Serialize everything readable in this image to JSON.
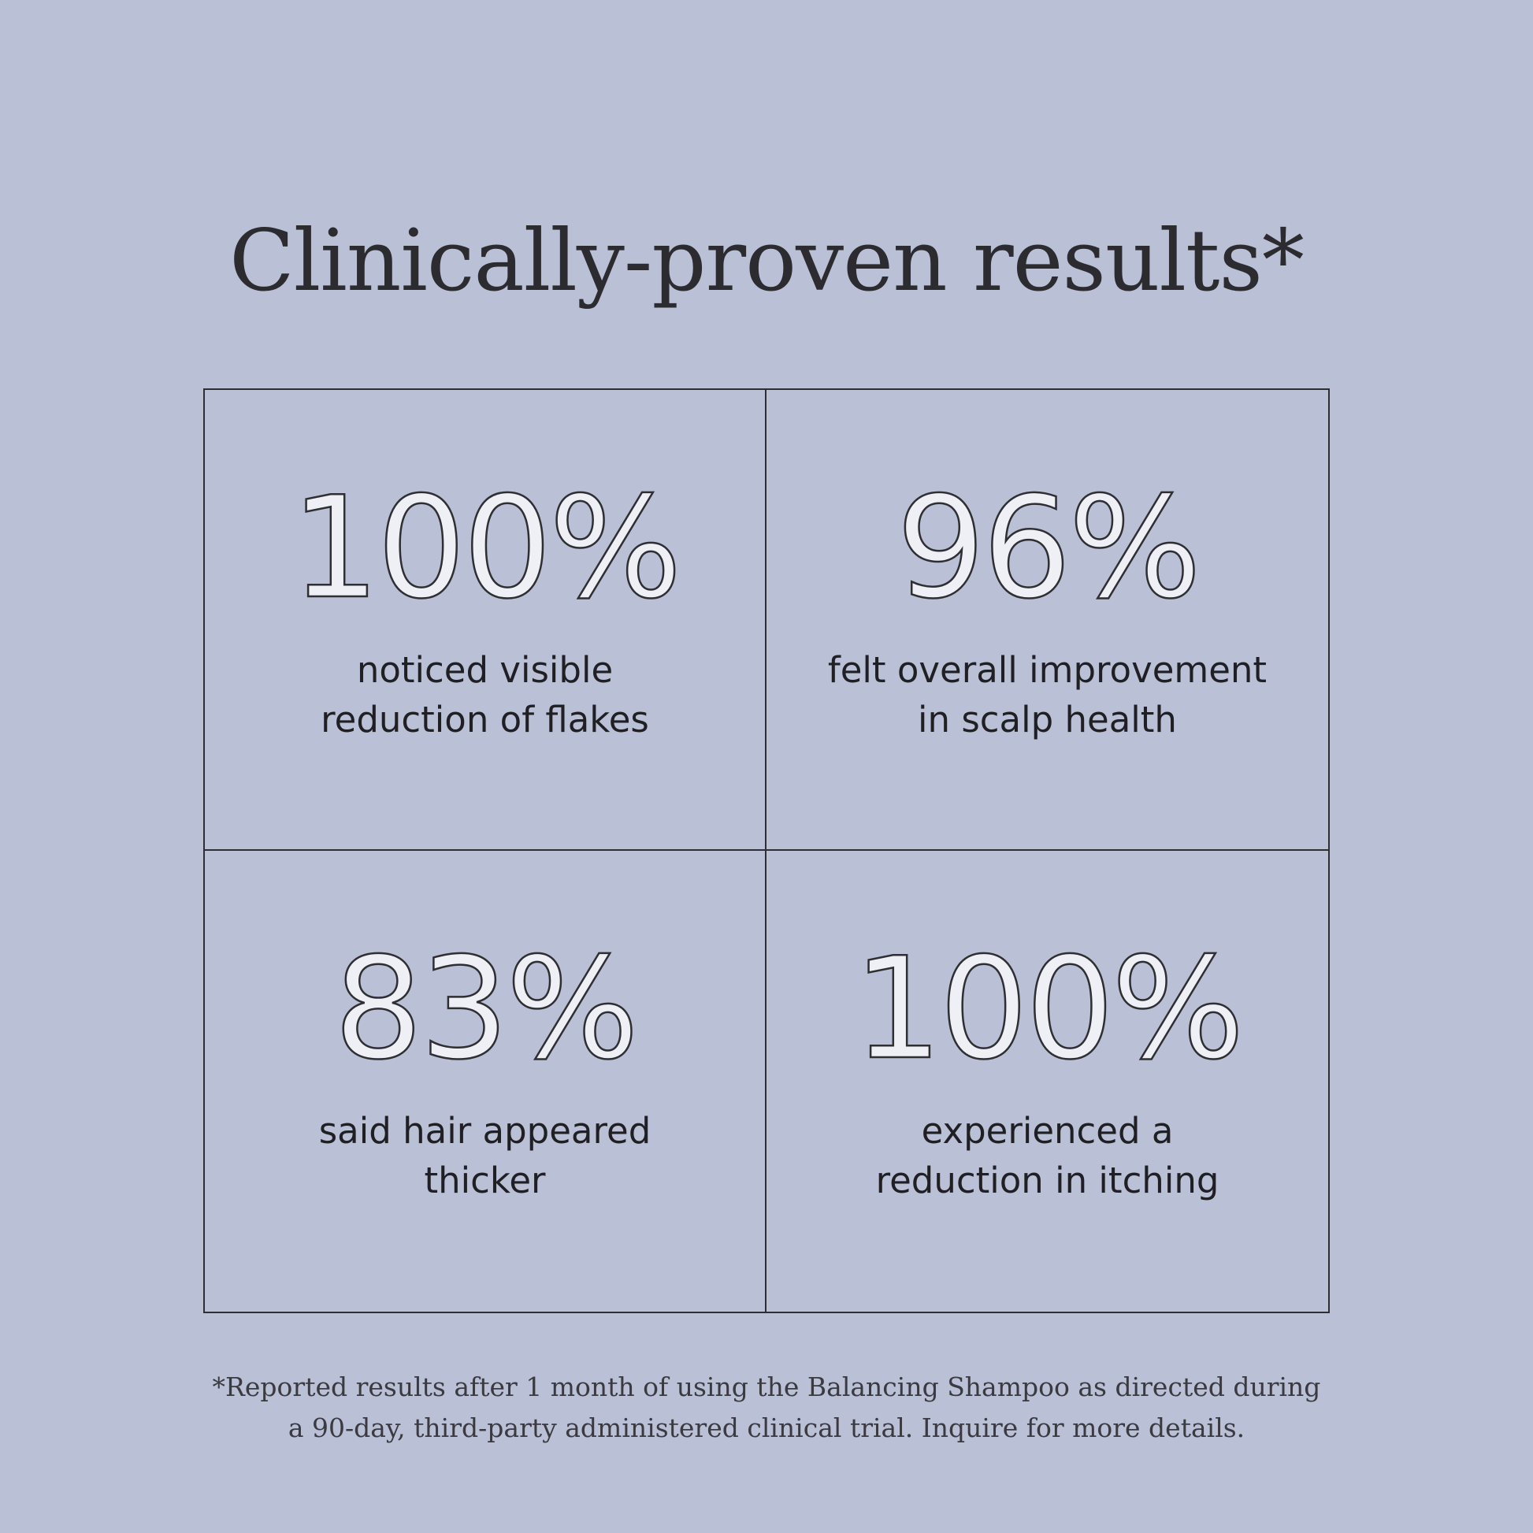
{
  "title": "Clinically-proven results*",
  "stats": [
    {
      "value": "100%",
      "label": "noticed visible\nreduction of flakes"
    },
    {
      "value": "96%",
      "label": "felt overall improvement\nin scalp health"
    },
    {
      "value": "83%",
      "label": "said hair appeared\nthicker"
    },
    {
      "value": "100%",
      "label": "experienced a\nreduction in itching"
    }
  ],
  "footnote": "*Reported results after 1 month of using the Balancing Shampoo as directed during\na 90-day, third-party administered clinical trial. Inquire for more details."
}
